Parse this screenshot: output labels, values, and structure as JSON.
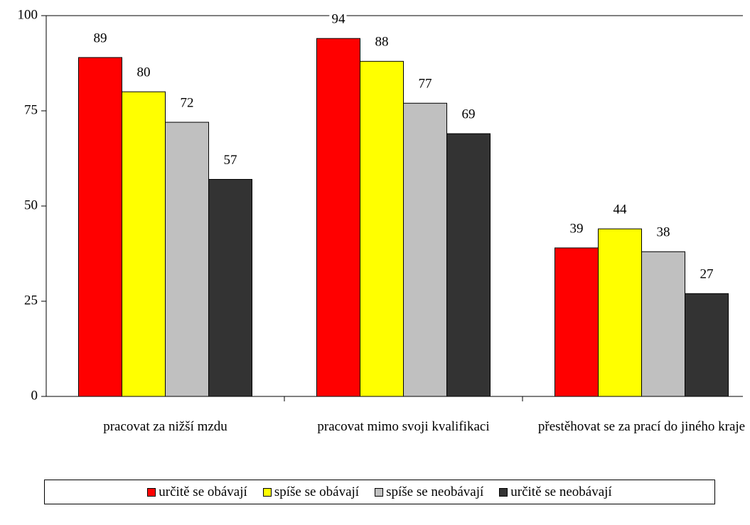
{
  "chart_data": {
    "type": "bar",
    "categories": [
      "pracovat za nižší mzdu",
      "pracovat mimo svoji kvalifikaci",
      "přestěhovat se za prací do jiného kraje"
    ],
    "series": [
      {
        "name": "určitě se obávají",
        "color": "#ff0000",
        "values": [
          89,
          94,
          39
        ]
      },
      {
        "name": "spíše se obávají",
        "color": "#ffff00",
        "values": [
          80,
          88,
          44
        ]
      },
      {
        "name": "spíše se neobávají",
        "color": "#c0c0c0",
        "values": [
          72,
          77,
          38
        ]
      },
      {
        "name": "určitě se neobávají",
        "color": "#333333",
        "values": [
          57,
          69,
          27
        ]
      }
    ],
    "ylim": [
      0,
      100
    ],
    "yticks": [
      0,
      25,
      50,
      75,
      100
    ],
    "grid": false,
    "legend": "bottom"
  }
}
